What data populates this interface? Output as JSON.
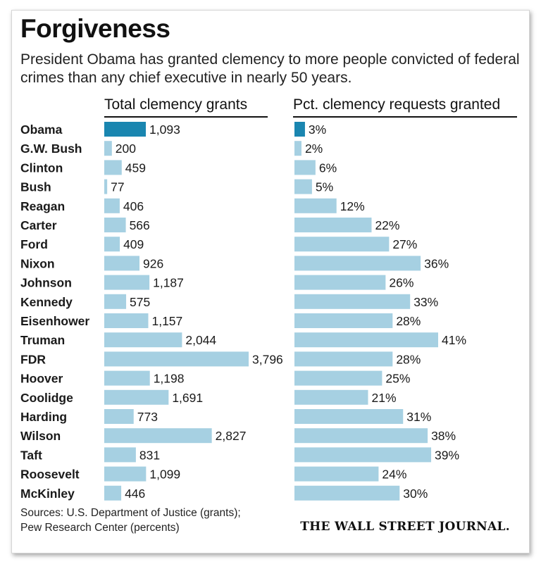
{
  "chart_data": {
    "type": "bar",
    "orientation": "horizontal",
    "title": "Forgiveness",
    "subtitle": "President Obama has granted clemency to more people convicted of federal crimes than any chief executive in nearly 50 years.",
    "categories": [
      "Obama",
      "G.W. Bush",
      "Clinton",
      "Bush",
      "Reagan",
      "Carter",
      "Ford",
      "Nixon",
      "Johnson",
      "Kennedy",
      "Eisenhower",
      "Truman",
      "FDR",
      "Hoover",
      "Coolidge",
      "Harding",
      "Wilson",
      "Taft",
      "Roosevelt",
      "McKinley"
    ],
    "highlight_category": "Obama",
    "series": [
      {
        "name": "Total clemency grants",
        "values": [
          1093,
          200,
          459,
          77,
          406,
          566,
          409,
          926,
          1187,
          575,
          1157,
          2044,
          3796,
          1198,
          1691,
          773,
          2827,
          831,
          1099,
          446
        ],
        "labels": [
          "1,093",
          "200",
          "459",
          "77",
          "406",
          "566",
          "409",
          "926",
          "1,187",
          "575",
          "1,157",
          "2,044",
          "3,796",
          "1,198",
          "1,691",
          "773",
          "2,827",
          "831",
          "1,099",
          "446"
        ]
      },
      {
        "name": "Pct. clemency requests granted",
        "values": [
          3,
          2,
          6,
          5,
          12,
          22,
          27,
          36,
          26,
          33,
          28,
          41,
          28,
          25,
          21,
          31,
          38,
          39,
          24,
          30
        ],
        "labels": [
          "3%",
          "2%",
          "6%",
          "5%",
          "12%",
          "22%",
          "27%",
          "36%",
          "26%",
          "33%",
          "28%",
          "41%",
          "28%",
          "25%",
          "21%",
          "31%",
          "38%",
          "39%",
          "24%",
          "30%"
        ]
      }
    ],
    "colors": {
      "highlight": "#1a86b0",
      "default": "#a6d0e2",
      "text": "#1a1a1a"
    },
    "grid": false,
    "legend": "none"
  },
  "footer": {
    "sources_line1": "Sources: U.S. Department of Justice (grants);",
    "sources_line2": "Pew Research Center (percents)",
    "masthead": "THE WALL STREET JOURNAL."
  }
}
